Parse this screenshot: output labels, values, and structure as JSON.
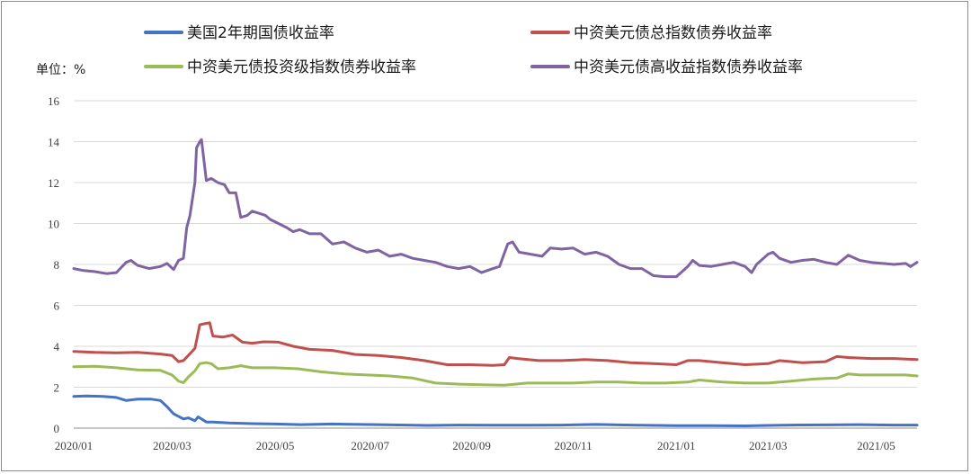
{
  "chart_data": {
    "type": "line",
    "title": "",
    "unit_label": "单位：%",
    "xlabel": "",
    "ylabel": "",
    "ylim": [
      0,
      16
    ],
    "yticks": [
      0,
      2,
      4,
      6,
      8,
      10,
      12,
      14,
      16
    ],
    "xlim": [
      "2020-01-02",
      "2021-05-31"
    ],
    "xticks": [
      {
        "date": "2020-01-02",
        "label": "2020/01"
      },
      {
        "date": "2020-03-02",
        "label": "2020/03"
      },
      {
        "date": "2020-05-04",
        "label": "2020/05"
      },
      {
        "date": "2020-07-01",
        "label": "2020/07"
      },
      {
        "date": "2020-09-01",
        "label": "2020/09"
      },
      {
        "date": "2020-11-02",
        "label": "2020/11"
      },
      {
        "date": "2021-01-04",
        "label": "2021/01"
      },
      {
        "date": "2021-03-01",
        "label": "2021/03"
      },
      {
        "date": "2021-05-06",
        "label": "2021/05"
      }
    ],
    "grid": true,
    "legend_position": "top",
    "series": [
      {
        "name": "美国2年期国债收益率",
        "color": "#4472C4",
        "points": [
          [
            "2020-01-02",
            1.55
          ],
          [
            "2020-01-10",
            1.57
          ],
          [
            "2020-01-20",
            1.55
          ],
          [
            "2020-01-28",
            1.5
          ],
          [
            "2020-02-03",
            1.35
          ],
          [
            "2020-02-10",
            1.42
          ],
          [
            "2020-02-18",
            1.42
          ],
          [
            "2020-02-24",
            1.35
          ],
          [
            "2020-02-28",
            1.05
          ],
          [
            "2020-03-03",
            0.7
          ],
          [
            "2020-03-09",
            0.45
          ],
          [
            "2020-03-12",
            0.5
          ],
          [
            "2020-03-16",
            0.36
          ],
          [
            "2020-03-18",
            0.55
          ],
          [
            "2020-03-23",
            0.3
          ],
          [
            "2020-03-27",
            0.3
          ],
          [
            "2020-04-06",
            0.25
          ],
          [
            "2020-04-20",
            0.22
          ],
          [
            "2020-05-04",
            0.2
          ],
          [
            "2020-05-20",
            0.17
          ],
          [
            "2020-06-08",
            0.2
          ],
          [
            "2020-06-25",
            0.18
          ],
          [
            "2020-07-15",
            0.16
          ],
          [
            "2020-08-05",
            0.13
          ],
          [
            "2020-08-25",
            0.15
          ],
          [
            "2020-09-15",
            0.14
          ],
          [
            "2020-10-05",
            0.14
          ],
          [
            "2020-10-26",
            0.15
          ],
          [
            "2020-11-16",
            0.18
          ],
          [
            "2020-12-07",
            0.15
          ],
          [
            "2021-01-04",
            0.12
          ],
          [
            "2021-01-25",
            0.12
          ],
          [
            "2021-02-15",
            0.11
          ],
          [
            "2021-03-01",
            0.13
          ],
          [
            "2021-03-15",
            0.15
          ],
          [
            "2021-04-05",
            0.16
          ],
          [
            "2021-04-26",
            0.17
          ],
          [
            "2021-05-17",
            0.15
          ],
          [
            "2021-05-31",
            0.15
          ]
        ]
      },
      {
        "name": "中资美元债总指数债券收益率",
        "color": "#C0504D",
        "points": [
          [
            "2020-01-02",
            3.75
          ],
          [
            "2020-01-15",
            3.7
          ],
          [
            "2020-01-28",
            3.68
          ],
          [
            "2020-02-10",
            3.7
          ],
          [
            "2020-02-24",
            3.62
          ],
          [
            "2020-03-02",
            3.55
          ],
          [
            "2020-03-06",
            3.25
          ],
          [
            "2020-03-09",
            3.3
          ],
          [
            "2020-03-12",
            3.55
          ],
          [
            "2020-03-16",
            3.9
          ],
          [
            "2020-03-19",
            5.05
          ],
          [
            "2020-03-23",
            5.12
          ],
          [
            "2020-03-25",
            5.15
          ],
          [
            "2020-03-27",
            4.5
          ],
          [
            "2020-04-02",
            4.45
          ],
          [
            "2020-04-08",
            4.55
          ],
          [
            "2020-04-14",
            4.2
          ],
          [
            "2020-04-20",
            4.15
          ],
          [
            "2020-04-27",
            4.22
          ],
          [
            "2020-05-06",
            4.2
          ],
          [
            "2020-05-15",
            4.0
          ],
          [
            "2020-05-25",
            3.85
          ],
          [
            "2020-06-08",
            3.8
          ],
          [
            "2020-06-22",
            3.6
          ],
          [
            "2020-07-06",
            3.55
          ],
          [
            "2020-07-20",
            3.45
          ],
          [
            "2020-08-03",
            3.3
          ],
          [
            "2020-08-17",
            3.1
          ],
          [
            "2020-08-31",
            3.1
          ],
          [
            "2020-09-14",
            3.07
          ],
          [
            "2020-09-21",
            3.1
          ],
          [
            "2020-09-24",
            3.45
          ],
          [
            "2020-09-29",
            3.4
          ],
          [
            "2020-10-12",
            3.3
          ],
          [
            "2020-10-26",
            3.3
          ],
          [
            "2020-11-09",
            3.35
          ],
          [
            "2020-11-23",
            3.3
          ],
          [
            "2020-12-07",
            3.2
          ],
          [
            "2020-12-21",
            3.15
          ],
          [
            "2021-01-04",
            3.1
          ],
          [
            "2021-01-11",
            3.3
          ],
          [
            "2021-01-18",
            3.3
          ],
          [
            "2021-02-01",
            3.2
          ],
          [
            "2021-02-15",
            3.1
          ],
          [
            "2021-03-01",
            3.15
          ],
          [
            "2021-03-08",
            3.3
          ],
          [
            "2021-03-22",
            3.2
          ],
          [
            "2021-04-05",
            3.25
          ],
          [
            "2021-04-12",
            3.5
          ],
          [
            "2021-04-19",
            3.45
          ],
          [
            "2021-05-03",
            3.4
          ],
          [
            "2021-05-17",
            3.4
          ],
          [
            "2021-05-31",
            3.35
          ]
        ]
      },
      {
        "name": "中资美元债投资级指数债券收益率",
        "color": "#9BBB59",
        "points": [
          [
            "2020-01-02",
            3.0
          ],
          [
            "2020-01-15",
            3.02
          ],
          [
            "2020-01-28",
            2.95
          ],
          [
            "2020-02-10",
            2.85
          ],
          [
            "2020-02-24",
            2.82
          ],
          [
            "2020-03-02",
            2.6
          ],
          [
            "2020-03-06",
            2.3
          ],
          [
            "2020-03-09",
            2.22
          ],
          [
            "2020-03-12",
            2.5
          ],
          [
            "2020-03-16",
            2.8
          ],
          [
            "2020-03-19",
            3.15
          ],
          [
            "2020-03-23",
            3.2
          ],
          [
            "2020-03-26",
            3.15
          ],
          [
            "2020-03-30",
            2.9
          ],
          [
            "2020-04-06",
            2.95
          ],
          [
            "2020-04-13",
            3.05
          ],
          [
            "2020-04-20",
            2.95
          ],
          [
            "2020-05-04",
            2.95
          ],
          [
            "2020-05-18",
            2.9
          ],
          [
            "2020-06-01",
            2.75
          ],
          [
            "2020-06-15",
            2.65
          ],
          [
            "2020-06-29",
            2.6
          ],
          [
            "2020-07-13",
            2.55
          ],
          [
            "2020-07-27",
            2.45
          ],
          [
            "2020-08-10",
            2.2
          ],
          [
            "2020-08-24",
            2.15
          ],
          [
            "2020-09-07",
            2.12
          ],
          [
            "2020-09-21",
            2.1
          ],
          [
            "2020-10-05",
            2.2
          ],
          [
            "2020-10-19",
            2.2
          ],
          [
            "2020-11-02",
            2.2
          ],
          [
            "2020-11-16",
            2.25
          ],
          [
            "2020-11-30",
            2.25
          ],
          [
            "2020-12-14",
            2.2
          ],
          [
            "2020-12-28",
            2.2
          ],
          [
            "2021-01-11",
            2.25
          ],
          [
            "2021-01-18",
            2.35
          ],
          [
            "2021-02-01",
            2.25
          ],
          [
            "2021-02-15",
            2.2
          ],
          [
            "2021-03-01",
            2.2
          ],
          [
            "2021-03-15",
            2.3
          ],
          [
            "2021-03-29",
            2.4
          ],
          [
            "2021-04-12",
            2.45
          ],
          [
            "2021-04-19",
            2.65
          ],
          [
            "2021-04-26",
            2.6
          ],
          [
            "2021-05-10",
            2.6
          ],
          [
            "2021-05-24",
            2.6
          ],
          [
            "2021-05-31",
            2.55
          ]
        ]
      },
      {
        "name": "中资美元债高收益指数债券收益率",
        "color": "#8064A2",
        "points": [
          [
            "2020-01-02",
            7.8
          ],
          [
            "2020-01-08",
            7.7
          ],
          [
            "2020-01-15",
            7.65
          ],
          [
            "2020-01-22",
            7.55
          ],
          [
            "2020-01-28",
            7.6
          ],
          [
            "2020-02-03",
            8.1
          ],
          [
            "2020-02-06",
            8.2
          ],
          [
            "2020-02-10",
            7.95
          ],
          [
            "2020-02-17",
            7.8
          ],
          [
            "2020-02-24",
            7.9
          ],
          [
            "2020-02-28",
            8.05
          ],
          [
            "2020-03-03",
            7.75
          ],
          [
            "2020-03-06",
            8.2
          ],
          [
            "2020-03-09",
            8.3
          ],
          [
            "2020-03-11",
            9.8
          ],
          [
            "2020-03-13",
            10.4
          ],
          [
            "2020-03-16",
            12.0
          ],
          [
            "2020-03-17",
            13.7
          ],
          [
            "2020-03-19",
            14.0
          ],
          [
            "2020-03-20",
            14.1
          ],
          [
            "2020-03-23",
            12.1
          ],
          [
            "2020-03-26",
            12.2
          ],
          [
            "2020-03-30",
            12.0
          ],
          [
            "2020-04-03",
            11.9
          ],
          [
            "2020-04-06",
            11.5
          ],
          [
            "2020-04-10",
            11.5
          ],
          [
            "2020-04-13",
            10.3
          ],
          [
            "2020-04-17",
            10.4
          ],
          [
            "2020-04-20",
            10.6
          ],
          [
            "2020-04-24",
            10.5
          ],
          [
            "2020-04-28",
            10.4
          ],
          [
            "2020-05-01",
            10.2
          ],
          [
            "2020-05-06",
            10.0
          ],
          [
            "2020-05-11",
            9.8
          ],
          [
            "2020-05-15",
            9.6
          ],
          [
            "2020-05-19",
            9.7
          ],
          [
            "2020-05-25",
            9.5
          ],
          [
            "2020-06-01",
            9.5
          ],
          [
            "2020-06-08",
            9.0
          ],
          [
            "2020-06-15",
            9.1
          ],
          [
            "2020-06-22",
            8.8
          ],
          [
            "2020-06-29",
            8.6
          ],
          [
            "2020-07-06",
            8.7
          ],
          [
            "2020-07-13",
            8.4
          ],
          [
            "2020-07-20",
            8.5
          ],
          [
            "2020-07-27",
            8.3
          ],
          [
            "2020-08-03",
            8.2
          ],
          [
            "2020-08-10",
            8.1
          ],
          [
            "2020-08-17",
            7.9
          ],
          [
            "2020-08-24",
            7.8
          ],
          [
            "2020-08-31",
            7.9
          ],
          [
            "2020-09-07",
            7.6
          ],
          [
            "2020-09-14",
            7.8
          ],
          [
            "2020-09-18",
            7.9
          ],
          [
            "2020-09-23",
            9.0
          ],
          [
            "2020-09-26",
            9.1
          ],
          [
            "2020-09-30",
            8.6
          ],
          [
            "2020-10-07",
            8.5
          ],
          [
            "2020-10-14",
            8.4
          ],
          [
            "2020-10-19",
            8.8
          ],
          [
            "2020-10-26",
            8.75
          ],
          [
            "2020-11-02",
            8.8
          ],
          [
            "2020-11-09",
            8.5
          ],
          [
            "2020-11-16",
            8.6
          ],
          [
            "2020-11-23",
            8.4
          ],
          [
            "2020-11-30",
            8.0
          ],
          [
            "2020-12-07",
            7.8
          ],
          [
            "2020-12-14",
            7.8
          ],
          [
            "2020-12-21",
            7.45
          ],
          [
            "2020-12-28",
            7.4
          ],
          [
            "2021-01-04",
            7.4
          ],
          [
            "2021-01-11",
            7.9
          ],
          [
            "2021-01-14",
            8.2
          ],
          [
            "2021-01-18",
            7.95
          ],
          [
            "2021-01-25",
            7.9
          ],
          [
            "2021-02-01",
            8.0
          ],
          [
            "2021-02-08",
            8.1
          ],
          [
            "2021-02-15",
            7.9
          ],
          [
            "2021-02-19",
            7.6
          ],
          [
            "2021-02-22",
            8.0
          ],
          [
            "2021-03-01",
            8.5
          ],
          [
            "2021-03-04",
            8.6
          ],
          [
            "2021-03-08",
            8.3
          ],
          [
            "2021-03-15",
            8.1
          ],
          [
            "2021-03-22",
            8.2
          ],
          [
            "2021-03-29",
            8.25
          ],
          [
            "2021-04-05",
            8.1
          ],
          [
            "2021-04-12",
            8.0
          ],
          [
            "2021-04-19",
            8.45
          ],
          [
            "2021-04-26",
            8.2
          ],
          [
            "2021-05-03",
            8.1
          ],
          [
            "2021-05-10",
            8.05
          ],
          [
            "2021-05-17",
            8.0
          ],
          [
            "2021-05-24",
            8.05
          ],
          [
            "2021-05-27",
            7.9
          ],
          [
            "2021-05-31",
            8.1
          ]
        ]
      }
    ]
  }
}
